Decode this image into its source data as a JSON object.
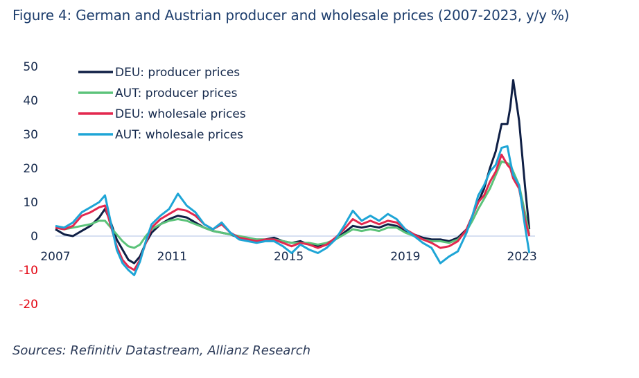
{
  "title": "Figure 4: German and Austrian producer and wholesale prices (2007-2023, y/y %)",
  "source": "Sources: Refinitiv Datastream, Allianz Research",
  "chart_data": {
    "type": "line",
    "title": "Figure 4: German and Austrian producer and wholesale prices (2007-2023, y/y %)",
    "xlabel": "",
    "ylabel": "y/y %",
    "ylim": [
      -20,
      50
    ],
    "xlim": [
      2007.0,
      2023.4
    ],
    "y_ticks": [
      50,
      40,
      30,
      20,
      10,
      0,
      -10,
      -20
    ],
    "x_ticks": [
      "2007",
      "2011",
      "2015",
      "2019",
      "2023"
    ],
    "x_tick_values": [
      2007,
      2011,
      2015,
      2019,
      2023
    ],
    "negative_tick_color": "#e30613",
    "zero_line": true,
    "grid": false,
    "legend_position": "top-left",
    "series": [
      {
        "name": "DEU: producer prices",
        "color": "#0f1f45",
        "x": [
          2007.0,
          2007.3,
          2007.6,
          2007.9,
          2008.2,
          2008.5,
          2008.7,
          2008.9,
          2009.1,
          2009.3,
          2009.5,
          2009.7,
          2009.9,
          2010.1,
          2010.3,
          2010.6,
          2010.9,
          2011.2,
          2011.5,
          2011.8,
          2012.1,
          2012.4,
          2012.7,
          2013.0,
          2013.3,
          2013.6,
          2013.9,
          2014.2,
          2014.5,
          2014.8,
          2015.1,
          2015.4,
          2015.7,
          2016.0,
          2016.3,
          2016.6,
          2016.9,
          2017.2,
          2017.5,
          2017.8,
          2018.1,
          2018.4,
          2018.7,
          2019.0,
          2019.3,
          2019.6,
          2019.9,
          2020.2,
          2020.5,
          2020.8,
          2021.1,
          2021.3,
          2021.5,
          2021.7,
          2021.9,
          2022.1,
          2022.3,
          2022.5,
          2022.6,
          2022.7,
          2022.9,
          2023.1,
          2023.25
        ],
        "values": [
          2.0,
          0.5,
          0.0,
          1.5,
          3.0,
          5.5,
          8.0,
          4.0,
          -1.0,
          -4.0,
          -7.0,
          -8.0,
          -6.0,
          -2.0,
          1.0,
          3.5,
          5.0,
          6.0,
          5.5,
          4.0,
          2.5,
          1.5,
          1.0,
          0.5,
          -0.5,
          -1.0,
          -1.0,
          -1.0,
          -0.5,
          -1.5,
          -2.0,
          -1.5,
          -2.5,
          -3.0,
          -2.5,
          -1.0,
          1.0,
          3.0,
          2.5,
          3.0,
          2.5,
          3.5,
          3.0,
          1.5,
          0.5,
          -0.5,
          -1.0,
          -1.0,
          -1.5,
          -0.5,
          2.0,
          6.0,
          10.0,
          14.0,
          20.0,
          25.0,
          33.0,
          33.0,
          38.0,
          46.0,
          34.0,
          15.0,
          2.0
        ]
      },
      {
        "name": "AUT: producer prices",
        "color": "#5cc37a",
        "x": [
          2007.0,
          2007.3,
          2007.6,
          2007.9,
          2008.2,
          2008.5,
          2008.7,
          2008.9,
          2009.1,
          2009.3,
          2009.5,
          2009.7,
          2009.9,
          2010.1,
          2010.3,
          2010.6,
          2010.9,
          2011.2,
          2011.5,
          2011.8,
          2012.1,
          2012.4,
          2012.7,
          2013.0,
          2013.3,
          2013.6,
          2013.9,
          2014.2,
          2014.5,
          2014.8,
          2015.1,
          2015.4,
          2015.7,
          2016.0,
          2016.3,
          2016.6,
          2016.9,
          2017.2,
          2017.5,
          2017.8,
          2018.1,
          2018.4,
          2018.7,
          2019.0,
          2019.3,
          2019.6,
          2019.9,
          2020.2,
          2020.5,
          2020.8,
          2021.1,
          2021.3,
          2021.5,
          2021.7,
          2021.9,
          2022.1,
          2022.3,
          2022.5,
          2022.6,
          2022.7,
          2022.9,
          2023.1,
          2023.25
        ],
        "values": [
          2.5,
          2.0,
          2.5,
          3.0,
          3.5,
          4.5,
          4.5,
          2.5,
          0.5,
          -1.5,
          -3.0,
          -3.5,
          -2.5,
          0.0,
          2.0,
          3.5,
          4.5,
          5.0,
          4.5,
          3.5,
          2.5,
          1.5,
          1.0,
          0.5,
          0.0,
          -0.5,
          -1.0,
          -1.0,
          -1.0,
          -1.5,
          -2.0,
          -2.0,
          -2.0,
          -2.5,
          -2.0,
          -1.0,
          0.5,
          2.0,
          1.5,
          2.0,
          1.5,
          2.5,
          2.5,
          1.0,
          0.0,
          -1.0,
          -1.5,
          -1.5,
          -2.0,
          -1.0,
          1.5,
          4.5,
          8.0,
          11.0,
          14.0,
          18.0,
          22.0,
          21.5,
          21.0,
          19.0,
          15.0,
          7.0,
          0.5
        ]
      },
      {
        "name": "DEU: wholesale prices",
        "color": "#e3284f",
        "x": [
          2007.0,
          2007.3,
          2007.6,
          2007.9,
          2008.2,
          2008.5,
          2008.7,
          2008.9,
          2009.1,
          2009.3,
          2009.5,
          2009.7,
          2009.9,
          2010.1,
          2010.3,
          2010.6,
          2010.9,
          2011.2,
          2011.5,
          2011.8,
          2012.1,
          2012.4,
          2012.7,
          2013.0,
          2013.3,
          2013.6,
          2013.9,
          2014.2,
          2014.5,
          2014.8,
          2015.1,
          2015.4,
          2015.7,
          2016.0,
          2016.3,
          2016.6,
          2016.9,
          2017.2,
          2017.5,
          2017.8,
          2018.1,
          2018.4,
          2018.7,
          2019.0,
          2019.3,
          2019.6,
          2019.9,
          2020.2,
          2020.5,
          2020.8,
          2021.1,
          2021.3,
          2021.5,
          2021.7,
          2021.9,
          2022.1,
          2022.3,
          2022.5,
          2022.6,
          2022.7,
          2022.9,
          2023.1,
          2023.25
        ],
        "values": [
          2.5,
          2.0,
          3.0,
          6.0,
          7.0,
          8.5,
          9.0,
          3.0,
          -3.0,
          -7.0,
          -9.0,
          -10.0,
          -7.0,
          -2.0,
          2.5,
          5.0,
          6.5,
          8.0,
          7.5,
          6.0,
          3.5,
          2.0,
          3.5,
          1.0,
          -0.5,
          -1.0,
          -1.5,
          -1.0,
          -1.0,
          -2.0,
          -3.0,
          -2.0,
          -2.5,
          -3.5,
          -2.5,
          -0.5,
          2.0,
          5.0,
          3.5,
          4.5,
          3.5,
          4.5,
          4.0,
          2.0,
          0.5,
          -1.0,
          -2.0,
          -3.5,
          -3.0,
          -1.5,
          2.0,
          6.0,
          10.0,
          12.0,
          16.0,
          19.0,
          24.0,
          21.0,
          20.0,
          17.0,
          14.0,
          5.0,
          0.0
        ]
      },
      {
        "name": "AUT: wholesale prices",
        "color": "#1ea5d6",
        "x": [
          2007.0,
          2007.3,
          2007.6,
          2007.9,
          2008.2,
          2008.5,
          2008.7,
          2008.9,
          2009.1,
          2009.3,
          2009.5,
          2009.7,
          2009.9,
          2010.1,
          2010.3,
          2010.6,
          2010.9,
          2011.2,
          2011.5,
          2011.8,
          2012.1,
          2012.4,
          2012.7,
          2013.0,
          2013.3,
          2013.6,
          2013.9,
          2014.2,
          2014.5,
          2014.8,
          2015.1,
          2015.4,
          2015.7,
          2016.0,
          2016.3,
          2016.6,
          2016.9,
          2017.2,
          2017.5,
          2017.8,
          2018.1,
          2018.4,
          2018.7,
          2019.0,
          2019.3,
          2019.6,
          2019.9,
          2020.2,
          2020.5,
          2020.8,
          2021.1,
          2021.3,
          2021.5,
          2021.7,
          2021.9,
          2022.1,
          2022.3,
          2022.5,
          2022.6,
          2022.7,
          2022.9,
          2023.1,
          2023.25
        ],
        "values": [
          3.0,
          2.5,
          4.0,
          7.0,
          8.5,
          10.0,
          12.0,
          4.0,
          -4.0,
          -8.0,
          -10.0,
          -11.5,
          -7.5,
          -1.5,
          3.5,
          6.0,
          8.0,
          12.5,
          9.0,
          7.0,
          3.5,
          2.0,
          4.0,
          1.0,
          -1.0,
          -1.5,
          -2.0,
          -1.5,
          -1.5,
          -3.0,
          -5.0,
          -2.5,
          -4.0,
          -5.0,
          -3.5,
          -1.0,
          3.0,
          7.5,
          4.5,
          6.0,
          4.5,
          6.5,
          5.0,
          2.0,
          0.0,
          -2.0,
          -3.5,
          -8.0,
          -6.0,
          -4.5,
          1.0,
          6.0,
          12.0,
          15.0,
          19.0,
          21.0,
          26.0,
          26.5,
          22.0,
          18.0,
          15.0,
          3.0,
          -5.0
        ]
      }
    ]
  }
}
